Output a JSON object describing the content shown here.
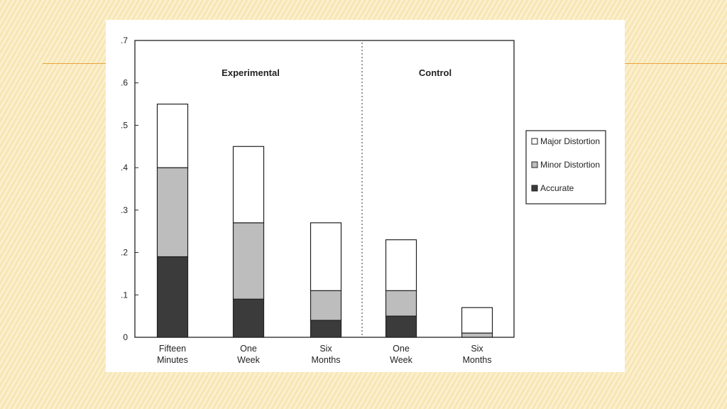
{
  "chart_data": {
    "type": "bar",
    "stacked": true,
    "ylim": [
      0,
      0.7
    ],
    "yticks": [
      {
        "value": 0,
        "label": "0"
      },
      {
        "value": 0.1,
        "label": ".1"
      },
      {
        "value": 0.2,
        "label": ".2"
      },
      {
        "value": 0.3,
        "label": ".3"
      },
      {
        "value": 0.4,
        "label": ".4"
      },
      {
        "value": 0.5,
        "label": ".5"
      },
      {
        "value": 0.6,
        "label": ".6"
      },
      {
        "value": 0.7,
        "label": ".7"
      }
    ],
    "groups": [
      {
        "label": "Experimental",
        "categories": [
          "Fifteen Minutes",
          "One Week",
          "Six Months"
        ]
      },
      {
        "label": "Control",
        "categories": [
          "One Week",
          "Six Months"
        ]
      }
    ],
    "categories": [
      [
        "Fifteen",
        "Minutes"
      ],
      [
        "One",
        "Week"
      ],
      [
        "Six",
        "Months"
      ],
      [
        "One",
        "Week"
      ],
      [
        "Six",
        "Months"
      ]
    ],
    "series": [
      {
        "name": "Accurate",
        "color": "#3b3b3b",
        "values": [
          0.19,
          0.09,
          0.04,
          0.05,
          0.0
        ]
      },
      {
        "name": "Minor Distortion",
        "color": "#bdbdbd",
        "values": [
          0.21,
          0.18,
          0.07,
          0.06,
          0.01
        ]
      },
      {
        "name": "Major Distortion",
        "color": "#ffffff",
        "values": [
          0.15,
          0.18,
          0.16,
          0.12,
          0.06
        ]
      }
    ],
    "legend_order": [
      "Major Distortion",
      "Minor Distortion",
      "Accurate"
    ],
    "legend_position": "right",
    "group_divider": "dotted",
    "grid": false
  }
}
